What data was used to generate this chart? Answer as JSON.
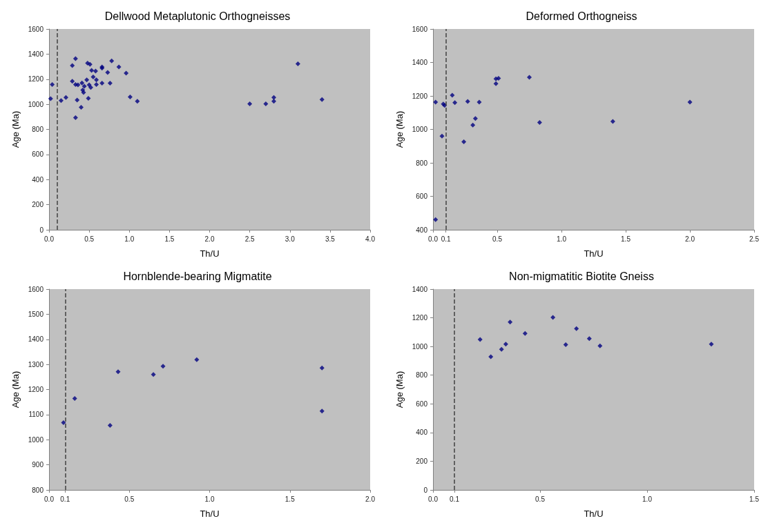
{
  "chart_data": [
    {
      "type": "scatter",
      "title": "Dellwood Metaplutonic Orthogneisses",
      "xlabel": "Th/U",
      "ylabel": "Age (Ma)",
      "marker": "diamond",
      "grid": false,
      "color": "#000080",
      "x": [
        0.02,
        0.04,
        0.15,
        0.21,
        0.29,
        0.33,
        0.29,
        0.33,
        0.36,
        0.35,
        0.33,
        0.4,
        0.41,
        0.42,
        0.43,
        0.44,
        0.47,
        0.49,
        0.48,
        0.51,
        0.5,
        0.52,
        0.53,
        0.55,
        0.58,
        0.59,
        0.59,
        0.66,
        0.66,
        0.66,
        0.73,
        0.76,
        0.78,
        0.87,
        0.96,
        1.01,
        1.1,
        2.5,
        2.7,
        2.8,
        2.8,
        3.1,
        3.4
      ],
      "values": [
        1044,
        1158,
        1030,
        1054,
        1308,
        1364,
        1184,
        1158,
        1154,
        1034,
        894,
        976,
        1170,
        1114,
        1094,
        1144,
        1194,
        1048,
        1328,
        1318,
        1154,
        1134,
        1270,
        1218,
        1264,
        1194,
        1158,
        1298,
        1288,
        1168,
        1254,
        1168,
        1346,
        1298,
        1248,
        1058,
        1024,
        1004,
        1004,
        1054,
        1024,
        1322,
        1038
      ],
      "xlim": [
        0,
        4
      ],
      "xticks": [
        {
          "value": 0,
          "label": "0.0"
        },
        0.5,
        {
          "value": 1,
          "label": "1.0"
        },
        1.5,
        {
          "value": 2,
          "label": "2.0"
        },
        2.5,
        {
          "value": 3,
          "label": "3.0"
        },
        3.5,
        {
          "value": 4,
          "label": "4.0"
        }
      ],
      "ylim": [
        0,
        1600
      ],
      "yticks": [
        0,
        200,
        400,
        600,
        800,
        1000,
        1200,
        1400,
        1600
      ],
      "ref_lines": [
        {
          "axis": "x",
          "value": 0.1,
          "color": "#404040",
          "line_style": "dashed"
        }
      ]
    },
    {
      "type": "scatter",
      "title": "Deformed Orthogneiss",
      "xlabel": "Th/U",
      "ylabel": "Age (Ma)",
      "marker": "diamond",
      "grid": false,
      "color": "#000080",
      "x": [
        0.02,
        0.02,
        0.07,
        0.08,
        0.09,
        0.15,
        0.17,
        0.24,
        0.27,
        0.31,
        0.33,
        0.36,
        0.49,
        0.49,
        0.51,
        0.75,
        0.83,
        1.4,
        2.0
      ],
      "values": [
        1163,
        461,
        960,
        1152,
        1143,
        1204,
        1160,
        926,
        1167,
        1026,
        1065,
        1163,
        1273,
        1302,
        1305,
        1311,
        1041,
        1047,
        1163
      ],
      "xlim": [
        0,
        2.5
      ],
      "xticks": [
        {
          "value": 0,
          "label": "0.0"
        },
        0.1,
        0.5,
        {
          "value": 1,
          "label": "1.0"
        },
        1.5,
        {
          "value": 2,
          "label": "2.0"
        },
        2.5
      ],
      "ylim": [
        400,
        1600
      ],
      "yticks": [
        400,
        600,
        800,
        1000,
        1200,
        1400,
        1600
      ],
      "ref_lines": [
        {
          "axis": "x",
          "value": 0.1,
          "color": "#404040",
          "line_style": "dashed"
        }
      ]
    },
    {
      "type": "scatter",
      "title": "Hornblende-bearing Migmatite",
      "xlabel": "Th/U",
      "ylabel": "Age (Ma)",
      "marker": "diamond",
      "grid": false,
      "color": "#000080",
      "x": [
        0.09,
        0.16,
        0.38,
        0.43,
        0.65,
        0.71,
        0.92,
        1.7,
        1.7
      ],
      "values": [
        1068,
        1164,
        1057,
        1271,
        1260,
        1293,
        1319,
        1286,
        1114
      ],
      "xlim": [
        0,
        2
      ],
      "xticks": [
        {
          "value": 0,
          "label": "0.0"
        },
        0.1,
        0.5,
        {
          "value": 1,
          "label": "1.0"
        },
        1.5,
        {
          "value": 2,
          "label": "2.0"
        }
      ],
      "ylim": [
        800,
        1600
      ],
      "yticks": [
        800,
        900,
        1000,
        1100,
        1200,
        1300,
        1400,
        1500,
        1600
      ],
      "ref_lines": [
        {
          "axis": "x",
          "value": 0.1,
          "color": "#404040",
          "line_style": "dashed"
        }
      ]
    },
    {
      "type": "scatter",
      "title": "Non-migmatitic Biotite Gneiss",
      "xlabel": "Th/U",
      "ylabel": "Age (Ma)",
      "marker": "diamond",
      "grid": false,
      "color": "#000080",
      "x": [
        0.22,
        0.27,
        0.32,
        0.34,
        0.36,
        0.43,
        0.56,
        0.62,
        0.67,
        0.73,
        0.78,
        1.3
      ],
      "values": [
        1049,
        929,
        980,
        1016,
        1170,
        1091,
        1203,
        1013,
        1124,
        1055,
        1004,
        1016
      ],
      "xlim": [
        0,
        1.5
      ],
      "xticks": [
        {
          "value": 0,
          "label": "0.0"
        },
        0.1,
        0.5,
        {
          "value": 1,
          "label": "1.0"
        },
        1.5
      ],
      "ylim": [
        0,
        1400
      ],
      "yticks": [
        0,
        200,
        400,
        600,
        800,
        1000,
        1200,
        1400
      ],
      "ref_lines": [
        {
          "axis": "x",
          "value": 0.1,
          "color": "#404040",
          "line_style": "dashed"
        }
      ]
    }
  ]
}
